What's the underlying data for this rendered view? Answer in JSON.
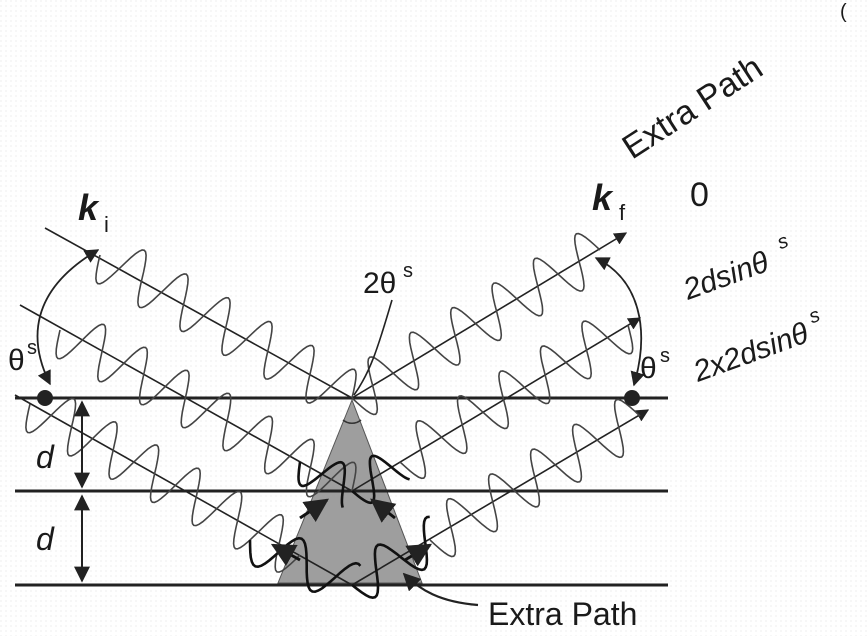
{
  "labels": {
    "corner_mark": "(",
    "k_i_symbol": "k",
    "k_i_sub": "i",
    "k_f_symbol": "k",
    "k_f_sub": "f",
    "theta_left": "θ",
    "theta_left_sup": "s",
    "theta_right": "θ",
    "theta_right_sup": "s",
    "two_theta": "2θ",
    "two_theta_sup": "s",
    "d_upper": "d",
    "d_lower": "d",
    "extra_path_header": "Extra Path",
    "path_values": [
      {
        "text": "0",
        "sup": ""
      },
      {
        "text": "2dsinθ",
        "sup": "s"
      },
      {
        "text": "2x2dsinθ",
        "sup": "s"
      }
    ],
    "extra_path_bottom": "Extra Path"
  },
  "colors": {
    "background": "#ffffff",
    "ink": "#222222",
    "shaded_triangle": "#9e9e9e"
  }
}
